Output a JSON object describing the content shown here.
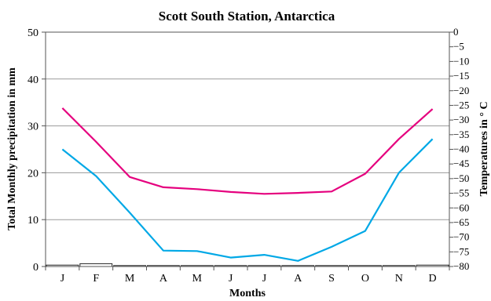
{
  "chart_data": {
    "type": "bar+line",
    "title": "Scott South Station, Antarctica",
    "xlabel": "Months",
    "ylabel_left": "Total Monthly precipitation in mm",
    "ylabel_right": "Temperatures in ° C",
    "categories": [
      "J",
      "F",
      "M",
      "A",
      "M",
      "J",
      "J",
      "A",
      "S",
      "O",
      "N",
      "D"
    ],
    "ylim_left": [
      0,
      50
    ],
    "yticks_left": [
      0,
      10,
      20,
      30,
      40,
      50
    ],
    "ylim_right": [
      -80,
      0
    ],
    "yticks_right": [
      0,
      -5,
      -10,
      -15,
      -20,
      -25,
      -30,
      -35,
      -40,
      -45,
      -50,
      -55,
      -60,
      -65,
      -70,
      -75,
      -80
    ],
    "grid": true,
    "series": [
      {
        "type": "bar",
        "axis": "left",
        "color": "#ffffff",
        "values": [
          0.3,
          0.6,
          0.2,
          0.0,
          0.1,
          0.0,
          0.0,
          0.0,
          0.0,
          0.0,
          0.0,
          0.3
        ]
      },
      {
        "type": "line",
        "axis": "left",
        "color": "#e5007e",
        "values": [
          33.8,
          26.6,
          19.1,
          16.9,
          16.5,
          15.9,
          15.5,
          15.7,
          16.0,
          19.8,
          27.2,
          33.6
        ]
      },
      {
        "type": "line",
        "axis": "left",
        "color": "#00a8e6",
        "values": [
          25.0,
          19.3,
          11.5,
          3.4,
          3.3,
          1.9,
          2.5,
          1.2,
          4.2,
          7.6,
          20.0,
          27.2
        ]
      }
    ]
  }
}
